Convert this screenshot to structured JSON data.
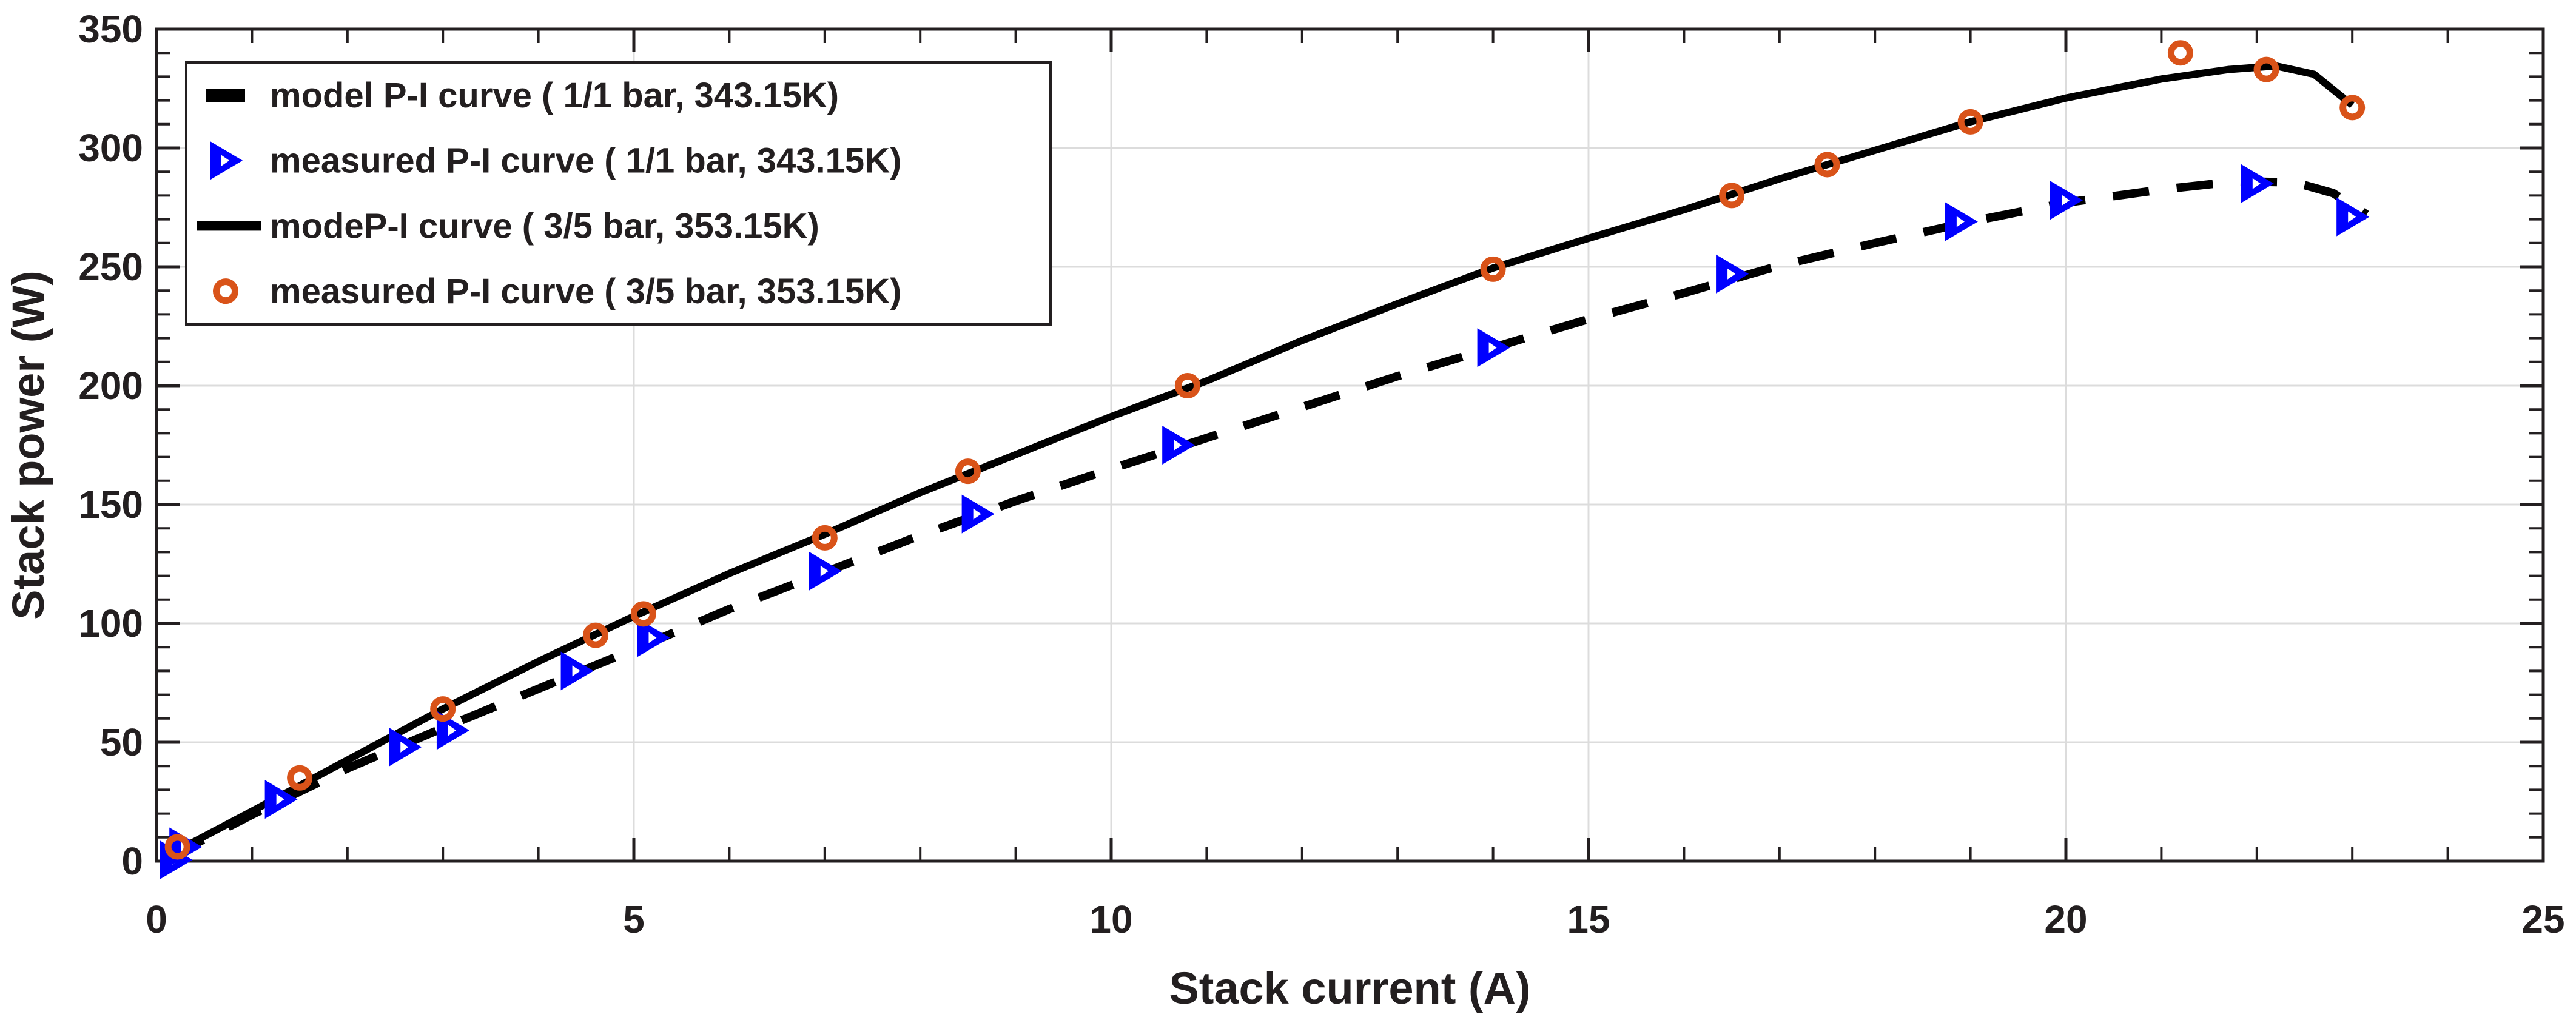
{
  "figure": {
    "background": "#ffffff",
    "axis_color": "#231f20",
    "grid_color": "#dcdcdc"
  },
  "chart_data": {
    "type": "line",
    "title": "",
    "xlabel": "Stack current (A)",
    "ylabel": "Stack power (W)",
    "xlim": [
      0,
      25
    ],
    "ylim": [
      0,
      350
    ],
    "x_ticks": [
      0,
      5,
      10,
      15,
      20,
      25
    ],
    "y_ticks": [
      0,
      50,
      100,
      150,
      200,
      250,
      300,
      350
    ],
    "x_minor_step": 1,
    "y_minor_step": 10,
    "grid": true,
    "legend_position": "top-left",
    "series": [
      {
        "name": "model P-I curve ( 1/1 bar, 343.15K)",
        "kind": "line",
        "line_style": "dashed",
        "color": "#000000",
        "points": [
          [
            0.15,
            2
          ],
          [
            1,
            19.5
          ],
          [
            2,
            39
          ],
          [
            3,
            56
          ],
          [
            4,
            72.5
          ],
          [
            5,
            89
          ],
          [
            6,
            106
          ],
          [
            7,
            121.5
          ],
          [
            8,
            137
          ],
          [
            9,
            151.5
          ],
          [
            10,
            165
          ],
          [
            11,
            178
          ],
          [
            12,
            191
          ],
          [
            13,
            204
          ],
          [
            14,
            216
          ],
          [
            15,
            228
          ],
          [
            16,
            239
          ],
          [
            17,
            250.5
          ],
          [
            18,
            260
          ],
          [
            19,
            269
          ],
          [
            20,
            277
          ],
          [
            21,
            282.5
          ],
          [
            21.8,
            286
          ],
          [
            22.4,
            285.5
          ],
          [
            22.8,
            281
          ],
          [
            23.15,
            272
          ]
        ]
      },
      {
        "name": "measured  P-I curve ( 1/1 bar, 343.15K)",
        "kind": "scatter",
        "marker": "triangle-right",
        "color": "#0000ff",
        "points": [
          [
            0.2,
            0.5
          ],
          [
            0.3,
            6
          ],
          [
            1.3,
            26
          ],
          [
            2.6,
            48
          ],
          [
            3.1,
            55
          ],
          [
            4.4,
            80
          ],
          [
            5.2,
            94
          ],
          [
            7.0,
            122
          ],
          [
            8.6,
            146
          ],
          [
            10.7,
            175
          ],
          [
            14.0,
            216
          ],
          [
            16.5,
            247
          ],
          [
            18.9,
            269
          ],
          [
            20.0,
            278
          ],
          [
            22.0,
            285
          ],
          [
            23.0,
            271
          ]
        ]
      },
      {
        "name": "modeP-I curve ( 3/5 bar, 353.15K)",
        "kind": "line",
        "line_style": "solid",
        "color": "#000000",
        "points": [
          [
            0.15,
            3
          ],
          [
            1,
            21
          ],
          [
            2,
            42.5
          ],
          [
            3,
            64
          ],
          [
            4,
            84
          ],
          [
            5,
            103
          ],
          [
            6,
            121
          ],
          [
            7,
            137.5
          ],
          [
            8,
            155
          ],
          [
            9,
            171
          ],
          [
            10,
            187
          ],
          [
            11,
            202
          ],
          [
            12,
            219
          ],
          [
            13,
            234.5
          ],
          [
            14,
            249.5
          ],
          [
            15,
            262
          ],
          [
            16,
            274
          ],
          [
            17,
            287
          ],
          [
            18,
            299
          ],
          [
            19,
            311
          ],
          [
            20,
            321
          ],
          [
            21,
            329
          ],
          [
            21.7,
            333
          ],
          [
            22.2,
            334.5
          ],
          [
            22.6,
            331
          ],
          [
            23.0,
            318
          ]
        ]
      },
      {
        "name": "measured P-I curve ( 3/5 bar, 353.15K)",
        "kind": "scatter",
        "marker": "circle",
        "color": "#d95319",
        "points": [
          [
            0.22,
            6
          ],
          [
            1.5,
            35
          ],
          [
            3.0,
            64
          ],
          [
            4.6,
            95
          ],
          [
            5.1,
            104
          ],
          [
            7.0,
            136
          ],
          [
            8.5,
            164
          ],
          [
            10.8,
            200
          ],
          [
            14.0,
            249
          ],
          [
            16.5,
            280
          ],
          [
            17.5,
            293
          ],
          [
            19.0,
            311
          ],
          [
            21.2,
            340
          ],
          [
            22.1,
            333
          ],
          [
            23.0,
            317
          ]
        ]
      }
    ]
  }
}
